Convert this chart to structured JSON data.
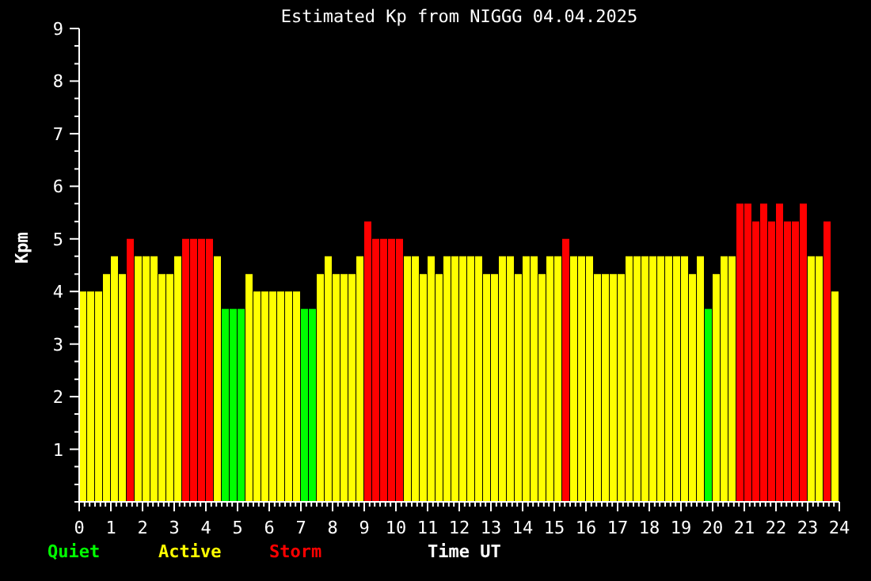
{
  "chart_data": {
    "type": "bar",
    "title": "Estimated Kp from NIGGG 04.04.2025",
    "xlabel": "Time UT",
    "ylabel": "Kpm",
    "stacked": true,
    "legend": "bottom left",
    "grid": false,
    "x": [
      0.125,
      0.375,
      0.625,
      0.875,
      1.125,
      1.375,
      1.625,
      1.875,
      2.125,
      2.375,
      2.625,
      2.875,
      3.125,
      3.375,
      3.625,
      3.875,
      4.125,
      4.375,
      4.625,
      4.875,
      5.125,
      5.375,
      5.625,
      5.875,
      6.125,
      6.375,
      6.625,
      6.875,
      7.125,
      7.375,
      7.625,
      7.875,
      8.125,
      8.375,
      8.625,
      8.875,
      9.125,
      9.375,
      9.625,
      9.875,
      10.125,
      10.375,
      10.625,
      10.875,
      11.125,
      11.375,
      11.625,
      11.875,
      12.125,
      12.375,
      12.625,
      12.875,
      13.125,
      13.375,
      13.625,
      13.875,
      14.125,
      14.375,
      14.625,
      14.875,
      15.125,
      15.375,
      15.625,
      15.875,
      16.125,
      16.375,
      16.625,
      16.875,
      17.125,
      17.375,
      17.625,
      17.875,
      18.125,
      18.375,
      18.625,
      18.875,
      19.125,
      19.375,
      19.625,
      19.875,
      20.125,
      20.375,
      20.625,
      20.875,
      21.125,
      21.375,
      21.625,
      21.875,
      22.125,
      22.375,
      22.625,
      22.875,
      23.125,
      23.375,
      23.625,
      23.875
    ],
    "series": [
      {
        "name": "Quiet",
        "color": "#00ff00",
        "values": [
          null,
          null,
          null,
          null,
          null,
          null,
          null,
          null,
          null,
          null,
          null,
          null,
          null,
          null,
          null,
          null,
          null,
          null,
          3.67,
          3.67,
          3.67,
          null,
          null,
          null,
          null,
          null,
          null,
          null,
          3.67,
          3.67,
          null,
          null,
          null,
          null,
          null,
          null,
          null,
          null,
          null,
          null,
          null,
          null,
          null,
          null,
          null,
          null,
          null,
          null,
          null,
          null,
          null,
          null,
          null,
          null,
          null,
          null,
          null,
          null,
          null,
          null,
          null,
          null,
          null,
          null,
          null,
          null,
          null,
          null,
          null,
          null,
          null,
          null,
          null,
          null,
          null,
          null,
          null,
          null,
          null,
          3.67,
          null,
          null,
          null,
          null,
          null,
          null,
          null,
          null,
          null,
          null,
          null,
          null,
          null,
          null,
          null,
          null
        ]
      },
      {
        "name": "Active",
        "color": "#ffff00",
        "values": [
          4,
          4,
          4,
          4.33,
          4.67,
          4.33,
          null,
          4.67,
          4.67,
          4.67,
          4.33,
          4.33,
          4.67,
          null,
          null,
          null,
          null,
          4.67,
          null,
          null,
          null,
          4.33,
          4,
          4,
          4,
          4,
          4,
          4,
          null,
          null,
          4.33,
          4.67,
          4.33,
          4.33,
          4.33,
          4.67,
          null,
          null,
          null,
          null,
          null,
          4.67,
          4.67,
          4.33,
          4.67,
          4.33,
          4.67,
          4.67,
          4.67,
          4.67,
          4.67,
          4.33,
          4.33,
          4.67,
          4.67,
          4.33,
          4.67,
          4.67,
          4.33,
          4.67,
          4.67,
          null,
          4.67,
          4.67,
          4.67,
          4.33,
          4.33,
          4.33,
          4.33,
          4.67,
          4.67,
          4.67,
          4.67,
          4.67,
          4.67,
          4.67,
          4.67,
          4.33,
          4.67,
          null,
          4.33,
          4.67,
          4.67,
          null,
          null,
          null,
          null,
          null,
          null,
          null,
          null,
          null,
          4.67,
          4.67,
          null,
          4
        ]
      },
      {
        "name": "Storm",
        "color": "#ff0000",
        "values": [
          null,
          null,
          null,
          null,
          null,
          null,
          5,
          null,
          null,
          null,
          null,
          null,
          null,
          5,
          5,
          5,
          5,
          null,
          null,
          null,
          null,
          null,
          null,
          null,
          null,
          null,
          null,
          null,
          null,
          null,
          null,
          null,
          null,
          null,
          null,
          null,
          5.33,
          5,
          5,
          5,
          5,
          null,
          null,
          null,
          null,
          null,
          null,
          null,
          null,
          null,
          null,
          null,
          null,
          null,
          null,
          null,
          null,
          null,
          null,
          null,
          null,
          5,
          null,
          null,
          null,
          null,
          null,
          null,
          null,
          null,
          null,
          null,
          null,
          null,
          null,
          null,
          null,
          null,
          null,
          null,
          null,
          null,
          null,
          5.67,
          5.67,
          5.33,
          5.67,
          5.33,
          5.67,
          5.33,
          5.33,
          5.67,
          null,
          null,
          5.33,
          null
        ]
      }
    ],
    "xlim": [
      0,
      24
    ],
    "xticks": [
      0,
      {
        "value": 0.17,
        "label": null
      },
      {
        "value": 0.33,
        "label": null
      },
      {
        "value": 0.5,
        "label": null
      },
      {
        "value": 0.67,
        "label": null
      },
      {
        "value": 0.83,
        "label": null
      },
      1,
      {
        "value": 1.17,
        "label": null
      },
      {
        "value": 1.33,
        "label": null
      },
      {
        "value": 1.5,
        "label": null
      },
      {
        "value": 1.67,
        "label": null
      },
      {
        "value": 1.83,
        "label": null
      },
      2,
      {
        "value": 2.17,
        "label": null
      },
      {
        "value": 2.33,
        "label": null
      },
      {
        "value": 2.5,
        "label": null
      },
      {
        "value": 2.67,
        "label": null
      },
      {
        "value": 2.83,
        "label": null
      },
      3,
      {
        "value": 3.17,
        "label": null
      },
      {
        "value": 3.33,
        "label": null
      },
      {
        "value": 3.5,
        "label": null
      },
      {
        "value": 3.67,
        "label": null
      },
      {
        "value": 3.83,
        "label": null
      },
      4,
      {
        "value": 4.17,
        "label": null
      },
      {
        "value": 4.33,
        "label": null
      },
      {
        "value": 4.5,
        "label": null
      },
      {
        "value": 4.67,
        "label": null
      },
      {
        "value": 4.83,
        "label": null
      },
      5,
      {
        "value": 5.17,
        "label": null
      },
      {
        "value": 5.33,
        "label": null
      },
      {
        "value": 5.5,
        "label": null
      },
      {
        "value": 5.67,
        "label": null
      },
      {
        "value": 5.83,
        "label": null
      },
      6,
      {
        "value": 6.17,
        "label": null
      },
      {
        "value": 6.33,
        "label": null
      },
      {
        "value": 6.5,
        "label": null
      },
      {
        "value": 6.67,
        "label": null
      },
      {
        "value": 6.83,
        "label": null
      },
      7,
      {
        "value": 7.17,
        "label": null
      },
      {
        "value": 7.33,
        "label": null
      },
      {
        "value": 7.5,
        "label": null
      },
      {
        "value": 7.67,
        "label": null
      },
      {
        "value": 7.83,
        "label": null
      },
      8,
      {
        "value": 8.17,
        "label": null
      },
      {
        "value": 8.33,
        "label": null
      },
      {
        "value": 8.5,
        "label": null
      },
      {
        "value": 8.67,
        "label": null
      },
      {
        "value": 8.83,
        "label": null
      },
      9,
      {
        "value": 9.17,
        "label": null
      },
      {
        "value": 9.33,
        "label": null
      },
      {
        "value": 9.5,
        "label": null
      },
      {
        "value": 9.67,
        "label": null
      },
      {
        "value": 9.83,
        "label": null
      },
      10,
      {
        "value": 10.17,
        "label": null
      },
      {
        "value": 10.33,
        "label": null
      },
      {
        "value": 10.5,
        "label": null
      },
      {
        "value": 10.67,
        "label": null
      },
      {
        "value": 10.83,
        "label": null
      },
      11,
      {
        "value": 11.17,
        "label": null
      },
      {
        "value": 11.33,
        "label": null
      },
      {
        "value": 11.5,
        "label": null
      },
      {
        "value": 11.67,
        "label": null
      },
      {
        "value": 11.83,
        "label": null
      },
      12,
      {
        "value": 12.17,
        "label": null
      },
      {
        "value": 12.33,
        "label": null
      },
      {
        "value": 12.5,
        "label": null
      },
      {
        "value": 12.67,
        "label": null
      },
      {
        "value": 12.83,
        "label": null
      },
      13,
      {
        "value": 13.17,
        "label": null
      },
      {
        "value": 13.33,
        "label": null
      },
      {
        "value": 13.5,
        "label": null
      },
      {
        "value": 13.67,
        "label": null
      },
      {
        "value": 13.83,
        "label": null
      },
      14,
      {
        "value": 14.17,
        "label": null
      },
      {
        "value": 14.33,
        "label": null
      },
      {
        "value": 14.5,
        "label": null
      },
      {
        "value": 14.67,
        "label": null
      },
      {
        "value": 14.83,
        "label": null
      },
      15,
      {
        "value": 15.17,
        "label": null
      },
      {
        "value": 15.33,
        "label": null
      },
      {
        "value": 15.5,
        "label": null
      },
      {
        "value": 15.67,
        "label": null
      },
      {
        "value": 15.83,
        "label": null
      },
      16,
      {
        "value": 16.17,
        "label": null
      },
      {
        "value": 16.33,
        "label": null
      },
      {
        "value": 16.5,
        "label": null
      },
      {
        "value": 16.67,
        "label": null
      },
      {
        "value": 16.83,
        "label": null
      },
      17,
      {
        "value": 17.17,
        "label": null
      },
      {
        "value": 17.33,
        "label": null
      },
      {
        "value": 17.5,
        "label": null
      },
      {
        "value": 17.67,
        "label": null
      },
      {
        "value": 17.83,
        "label": null
      },
      18,
      {
        "value": 18.17,
        "label": null
      },
      {
        "value": 18.33,
        "label": null
      },
      {
        "value": 18.5,
        "label": null
      },
      {
        "value": 18.67,
        "label": null
      },
      {
        "value": 18.83,
        "label": null
      },
      19,
      {
        "value": 19.17,
        "label": null
      },
      {
        "value": 19.33,
        "label": null
      },
      {
        "value": 19.5,
        "label": null
      },
      {
        "value": 19.67,
        "label": null
      },
      {
        "value": 19.83,
        "label": null
      },
      20,
      {
        "value": 20.17,
        "label": null
      },
      {
        "value": 20.33,
        "label": null
      },
      {
        "value": 20.5,
        "label": null
      },
      {
        "value": 20.67,
        "label": null
      },
      {
        "value": 20.83,
        "label": null
      },
      21,
      {
        "value": 21.17,
        "label": null
      },
      {
        "value": 21.33,
        "label": null
      },
      {
        "value": 21.5,
        "label": null
      },
      {
        "value": 21.67,
        "label": null
      },
      {
        "value": 21.83,
        "label": null
      },
      22,
      {
        "value": 22.17,
        "label": null
      },
      {
        "value": 22.33,
        "label": null
      },
      {
        "value": 22.5,
        "label": null
      },
      {
        "value": 22.67,
        "label": null
      },
      {
        "value": 22.83,
        "label": null
      },
      23,
      {
        "value": 23.17,
        "label": null
      },
      {
        "value": 23.33,
        "label": null
      },
      {
        "value": 23.5,
        "label": null
      },
      {
        "value": 23.67,
        "label": null
      },
      {
        "value": 23.83,
        "label": null
      },
      24
    ],
    "ylim": [
      0,
      9
    ],
    "yticks": [
      {
        "value": 0,
        "label": null
      },
      {
        "value": 0.33,
        "label": null
      },
      {
        "value": 0.67,
        "label": null
      },
      1,
      {
        "value": 1.33,
        "label": null
      },
      {
        "value": 1.67,
        "label": null
      },
      2,
      {
        "value": 2.33,
        "label": null
      },
      {
        "value": 2.67,
        "label": null
      },
      3,
      {
        "value": 3.33,
        "label": null
      },
      {
        "value": 3.67,
        "label": null
      },
      4,
      {
        "value": 4.33,
        "label": null
      },
      {
        "value": 4.67,
        "label": null
      },
      5,
      {
        "value": 5.33,
        "label": null
      },
      {
        "value": 5.67,
        "label": null
      },
      6,
      {
        "value": 6.33,
        "label": null
      },
      {
        "value": 6.67,
        "label": null
      },
      7,
      {
        "value": 7.33,
        "label": null
      },
      {
        "value": 7.67,
        "label": null
      },
      8,
      {
        "value": 8.33,
        "label": null
      },
      {
        "value": 8.67,
        "label": null
      },
      9
    ]
  }
}
